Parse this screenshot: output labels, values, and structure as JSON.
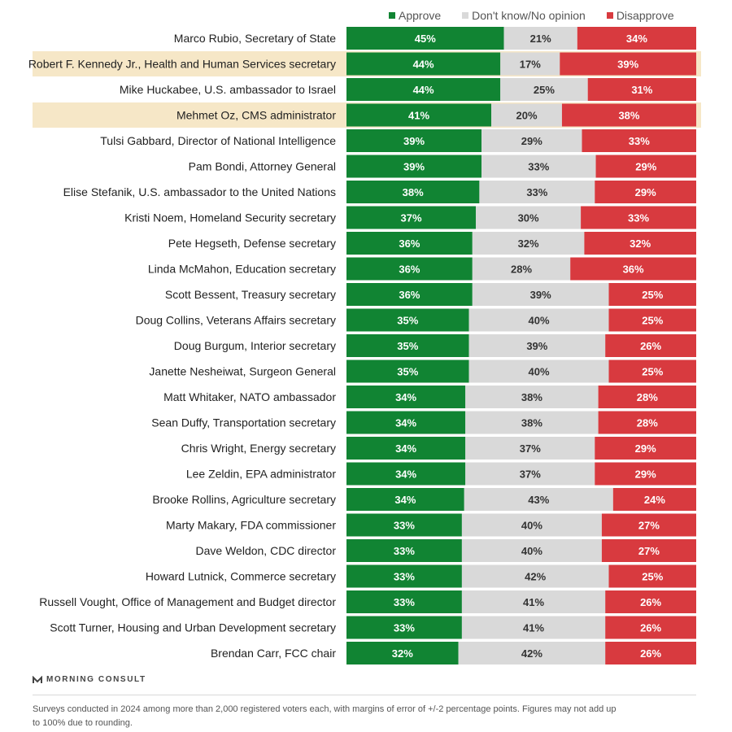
{
  "legend": {
    "approve": "Approve",
    "no_opinion": "Don't know/No opinion",
    "disapprove": "Disapprove"
  },
  "colors": {
    "approve": "#118433",
    "no_opinion": "#d9d9d9",
    "disapprove": "#d83a3f",
    "highlight": "#f6e7c7"
  },
  "logo": {
    "text": "MORNING CONSULT",
    "icon": "morning-consult-logo-icon"
  },
  "footnote": "Surveys conducted in 2024 among more than 2,000 registered voters each, with margins of error of +/-2 percentage points. Figures may not add up to 100% due to rounding.",
  "chart_data": {
    "type": "bar",
    "orientation": "horizontal",
    "stacked": true,
    "value_suffix": "%",
    "categories": [
      "Marco Rubio, Secretary of State",
      "Robert F. Kennedy Jr., Health and Human Services secretary",
      "Mike Huckabee, U.S. ambassador to Israel",
      "Mehmet Oz, CMS administrator",
      "Tulsi Gabbard, Director of National Intelligence",
      "Pam Bondi, Attorney General",
      "Elise Stefanik, U.S. ambassador to the United Nations",
      "Kristi Noem, Homeland Security secretary",
      "Pete Hegseth, Defense secretary",
      "Linda McMahon, Education secretary",
      "Scott Bessent, Treasury secretary",
      "Doug Collins, Veterans Affairs secretary",
      "Doug Burgum, Interior secretary",
      "Janette Nesheiwat, Surgeon General",
      "Matt Whitaker, NATO ambassador",
      "Sean Duffy, Transportation secretary",
      "Chris Wright, Energy secretary",
      "Lee Zeldin, EPA administrator",
      "Brooke Rollins, Agriculture secretary",
      "Marty Makary, FDA commissioner",
      "Dave Weldon, CDC director",
      "Howard Lutnick, Commerce secretary",
      "Russell Vought, Office of Management and Budget director",
      "Scott Turner, Housing and Urban Development secretary",
      "Brendan Carr, FCC chair"
    ],
    "highlighted": [
      "Robert F. Kennedy Jr., Health and Human Services secretary",
      "Mehmet Oz, CMS administrator"
    ],
    "series": [
      {
        "name": "Approve",
        "key": "approve",
        "values": [
          45,
          44,
          44,
          41,
          39,
          39,
          38,
          37,
          36,
          36,
          36,
          35,
          35,
          35,
          34,
          34,
          34,
          34,
          34,
          33,
          33,
          33,
          33,
          33,
          32
        ]
      },
      {
        "name": "Don't know/No opinion",
        "key": "no_opinion",
        "values": [
          21,
          17,
          25,
          20,
          29,
          33,
          33,
          30,
          32,
          28,
          39,
          40,
          39,
          40,
          38,
          38,
          37,
          37,
          43,
          40,
          40,
          42,
          41,
          41,
          42
        ]
      },
      {
        "name": "Disapprove",
        "key": "disapprove",
        "values": [
          34,
          39,
          31,
          38,
          33,
          29,
          29,
          33,
          32,
          36,
          25,
          25,
          26,
          25,
          28,
          28,
          29,
          29,
          24,
          27,
          27,
          25,
          26,
          26,
          26
        ]
      }
    ],
    "legend_position": "top",
    "grid": false
  }
}
